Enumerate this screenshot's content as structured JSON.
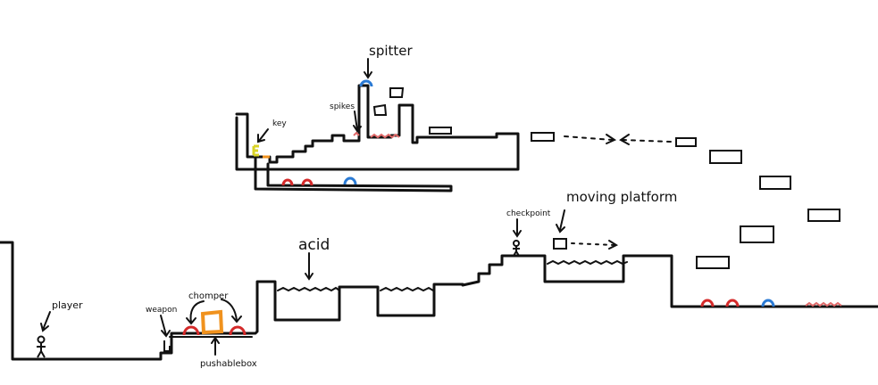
{
  "labels": {
    "spitter": "spitter",
    "spikes": "spikes",
    "key": "key",
    "checkpoint": "checkpoint",
    "moving_platform": "moving platform",
    "acid": "acid",
    "player": "player",
    "weapon": "weapon",
    "chomper": "chomper",
    "pushable_box": "pushablebox"
  },
  "colors": {
    "ink": "#111111",
    "chomper": "#d42a2a",
    "spitter": "#2a7ad4",
    "box": "#f0921e",
    "key": "#d9d326",
    "spikes": "#e06a6a"
  }
}
